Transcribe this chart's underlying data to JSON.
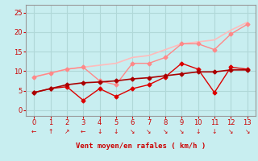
{
  "title": "",
  "xlabel": "Vent moyen/en rafales ( km/h )",
  "background_color": "#c8eef0",
  "grid_color": "#b0d8d8",
  "x": [
    0,
    1,
    2,
    3,
    4,
    5,
    6,
    7,
    8,
    9,
    10,
    11,
    12,
    13
  ],
  "line1": {
    "y": [
      4.5,
      5.5,
      6.0,
      2.5,
      5.5,
      3.5,
      5.5,
      6.5,
      8.5,
      12.0,
      10.5,
      4.5,
      11.0,
      10.5
    ],
    "color": "#dd0000",
    "lw": 1.0,
    "marker": "D",
    "markersize": 2.5
  },
  "line2": {
    "y": [
      4.5,
      5.5,
      6.5,
      7.0,
      7.2,
      7.5,
      8.0,
      8.3,
      8.8,
      9.3,
      9.8,
      9.8,
      10.3,
      10.3
    ],
    "color": "#aa0000",
    "lw": 1.2,
    "marker": "D",
    "markersize": 2.5
  },
  "line3": {
    "y": [
      8.5,
      9.5,
      10.5,
      11.0,
      7.5,
      6.5,
      12.0,
      12.0,
      13.5,
      17.0,
      17.0,
      15.5,
      19.5,
      22.0
    ],
    "color": "#ff8888",
    "lw": 1.0,
    "marker": "D",
    "markersize": 2.5
  },
  "line4": {
    "y": [
      8.5,
      9.5,
      10.5,
      11.0,
      11.5,
      12.0,
      13.5,
      14.0,
      15.5,
      17.0,
      17.5,
      18.0,
      20.5,
      22.5
    ],
    "color": "#ffbbbb",
    "lw": 1.2,
    "marker": null
  },
  "xlim": [
    -0.5,
    13.5
  ],
  "ylim": [
    -1.5,
    27
  ],
  "yticks": [
    0,
    5,
    10,
    15,
    20,
    25
  ],
  "xticks": [
    0,
    1,
    2,
    3,
    4,
    5,
    6,
    7,
    8,
    9,
    10,
    11,
    12,
    13
  ],
  "tick_color": "#cc0000",
  "label_color": "#cc0000",
  "spine_color": "#999999"
}
